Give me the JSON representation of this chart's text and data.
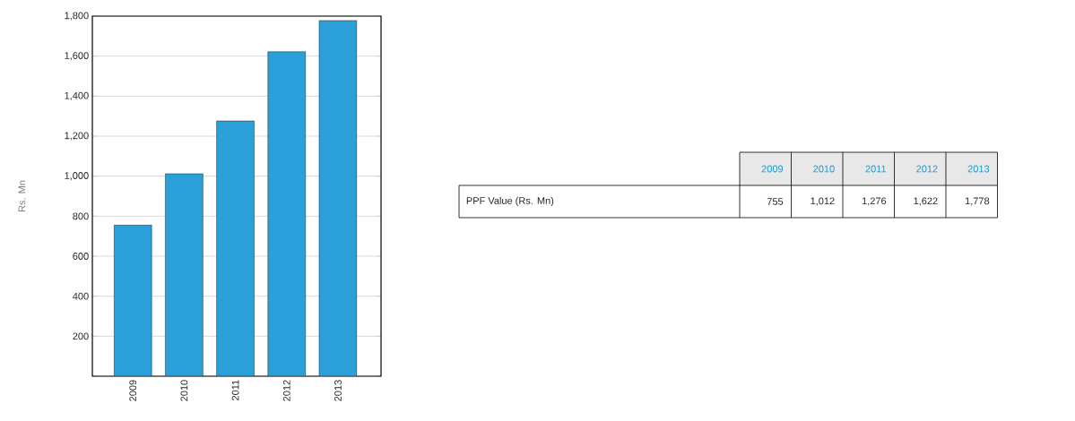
{
  "chart_data": {
    "type": "bar",
    "ylabel": "Rs. Mn",
    "categories": [
      "2009",
      "2010",
      "2011",
      "2012",
      "2013"
    ],
    "values": [
      755,
      1012,
      1276,
      1622,
      1778
    ],
    "color": "#2a9fd8",
    "ylim": [
      0,
      1800
    ],
    "yticks": [
      {
        "value": 0,
        "label": null
      },
      200,
      400,
      600,
      800,
      {
        "value": 1000,
        "label": "1,000"
      },
      {
        "value": 1200,
        "label": "1,200"
      },
      {
        "value": 1400,
        "label": "1,400"
      },
      {
        "value": 1600,
        "label": "1,600"
      },
      {
        "value": 1800,
        "label": "1,800"
      }
    ],
    "grid": "y",
    "annotations": [
      "PPF Value (Rs. Mn)",
      "755",
      "1,012",
      "1,276",
      "1,622",
      "1,778"
    ]
  }
}
